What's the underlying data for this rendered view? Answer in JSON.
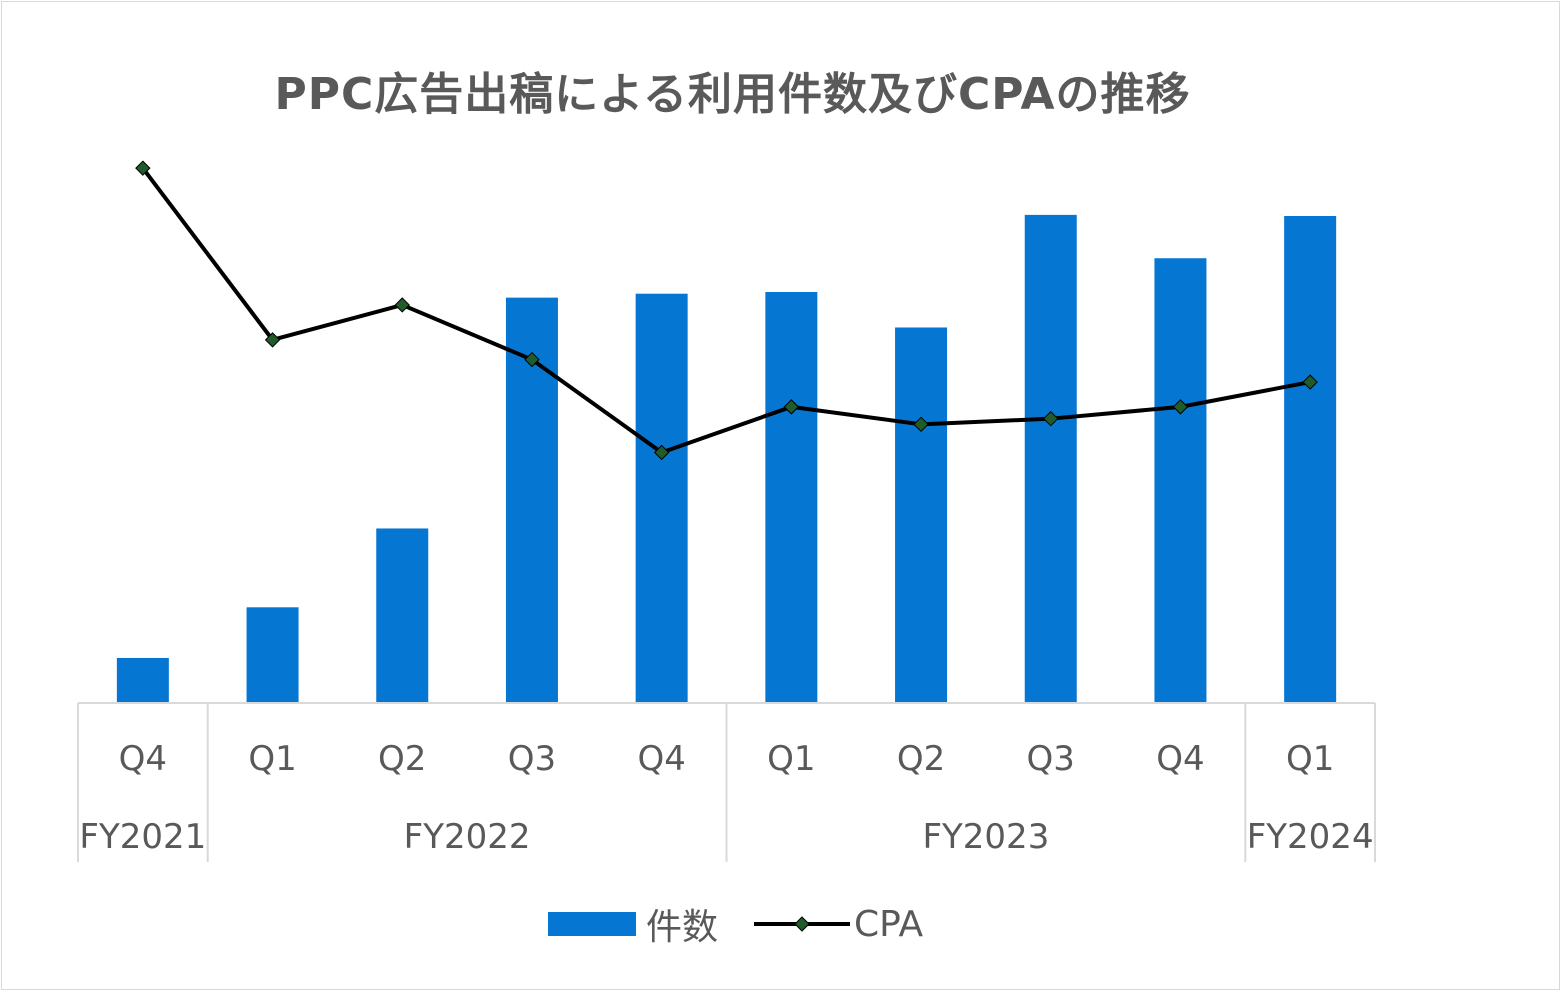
{
  "title": "PPC広告出稿による利用件数及びCPAの推移",
  "colors": {
    "bar": "#0577d3",
    "line": "#000000",
    "marker": "#1f5c2a",
    "axis": "#d9d9d9",
    "text": "#595959"
  },
  "chart_data": {
    "type": "bar",
    "title": "PPC広告出稿による利用件数及びCPAの推移",
    "categories": [
      "Q4",
      "Q1",
      "Q2",
      "Q3",
      "Q4",
      "Q1",
      "Q2",
      "Q3",
      "Q4",
      "Q1"
    ],
    "groups": [
      {
        "label": "FY2021",
        "count": 1
      },
      {
        "label": "FY2022",
        "count": 4
      },
      {
        "label": "FY2023",
        "count": 4
      },
      {
        "label": "FY2024",
        "count": 1
      }
    ],
    "series": [
      {
        "name": "件数",
        "type": "bar",
        "values": [
          8,
          17,
          31,
          72,
          72.7,
          73,
          66.7,
          86.7,
          79,
          86.5
        ]
      },
      {
        "name": "CPA",
        "type": "line",
        "values": [
          95,
          64.5,
          70.7,
          61,
          44.5,
          52.6,
          49.5,
          50.5,
          52.6,
          57
        ]
      }
    ],
    "ylim": [
      0,
      100
    ],
    "grid": false,
    "legend": "bottom"
  }
}
